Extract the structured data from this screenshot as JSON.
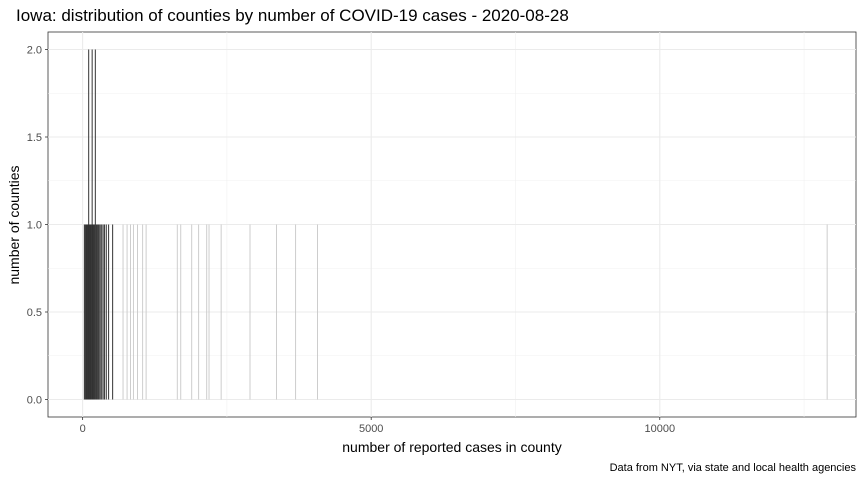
{
  "chart_data": {
    "type": "bar",
    "title": "Iowa: distribution of counties by number of COVID-19 cases - 2020-08-28",
    "xlabel": "number of reported cases in county",
    "ylabel": "number of counties",
    "caption": "Data from NYT, via state and local health agencies",
    "xlim": [
      -600,
      13400
    ],
    "ylim": [
      -0.1,
      2.1
    ],
    "x_ticks": [
      0,
      5000,
      10000
    ],
    "y_ticks": [
      0.0,
      0.5,
      1.0,
      1.5,
      2.0
    ],
    "x_tick_labels": [
      "0",
      "5000",
      "10000"
    ],
    "y_tick_labels": [
      "0.0",
      "0.5",
      "1.0",
      "1.5",
      "2.0"
    ],
    "grid": true,
    "points": [
      {
        "x": 30,
        "count": 1
      },
      {
        "x": 45,
        "count": 1
      },
      {
        "x": 60,
        "count": 1
      },
      {
        "x": 72,
        "count": 1
      },
      {
        "x": 85,
        "count": 1
      },
      {
        "x": 95,
        "count": 1
      },
      {
        "x": 105,
        "count": 2
      },
      {
        "x": 115,
        "count": 1
      },
      {
        "x": 128,
        "count": 1
      },
      {
        "x": 140,
        "count": 1
      },
      {
        "x": 152,
        "count": 1
      },
      {
        "x": 165,
        "count": 2
      },
      {
        "x": 178,
        "count": 1
      },
      {
        "x": 190,
        "count": 1
      },
      {
        "x": 205,
        "count": 1
      },
      {
        "x": 220,
        "count": 2
      },
      {
        "x": 235,
        "count": 1
      },
      {
        "x": 250,
        "count": 1
      },
      {
        "x": 268,
        "count": 1
      },
      {
        "x": 285,
        "count": 1
      },
      {
        "x": 305,
        "count": 1
      },
      {
        "x": 330,
        "count": 1
      },
      {
        "x": 355,
        "count": 1
      },
      {
        "x": 380,
        "count": 1
      },
      {
        "x": 410,
        "count": 1
      },
      {
        "x": 450,
        "count": 1
      },
      {
        "x": 520,
        "count": 1
      },
      {
        "x": 700,
        "count": 1
      },
      {
        "x": 770,
        "count": 1
      },
      {
        "x": 830,
        "count": 1
      },
      {
        "x": 880,
        "count": 1
      },
      {
        "x": 950,
        "count": 1
      },
      {
        "x": 1040,
        "count": 1
      },
      {
        "x": 1100,
        "count": 1
      },
      {
        "x": 1640,
        "count": 1
      },
      {
        "x": 1700,
        "count": 1
      },
      {
        "x": 1890,
        "count": 1
      },
      {
        "x": 2010,
        "count": 1
      },
      {
        "x": 2150,
        "count": 1
      },
      {
        "x": 2190,
        "count": 1
      },
      {
        "x": 2400,
        "count": 1
      },
      {
        "x": 2900,
        "count": 1
      },
      {
        "x": 3360,
        "count": 1
      },
      {
        "x": 3690,
        "count": 1
      },
      {
        "x": 4070,
        "count": 1
      },
      {
        "x": 12900,
        "count": 1
      }
    ]
  }
}
